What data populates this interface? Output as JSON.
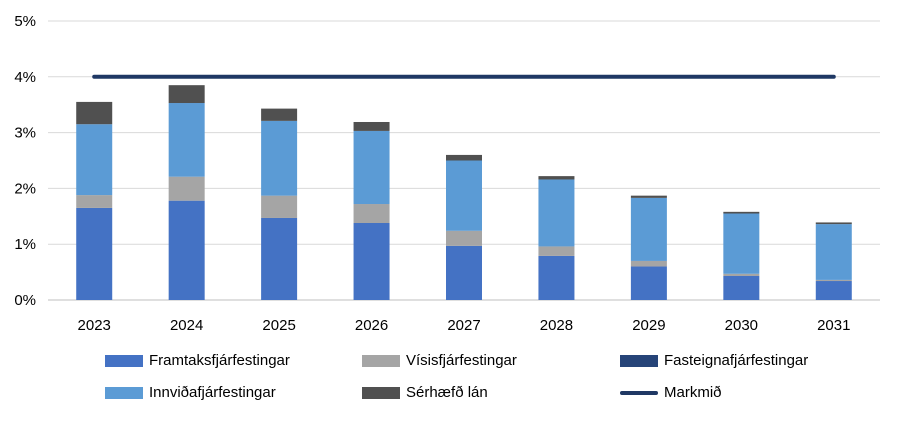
{
  "chart_data": {
    "type": "bar",
    "stacked": true,
    "categories": [
      "2023",
      "2024",
      "2025",
      "2026",
      "2027",
      "2028",
      "2029",
      "2030",
      "2031"
    ],
    "yticks": [
      "0%",
      "1%",
      "2%",
      "3%",
      "4%",
      "5%"
    ],
    "ylim": [
      0,
      5
    ],
    "grid": true,
    "legend_position": "bottom",
    "series": [
      {
        "name": "Framtaksfjárfestingar",
        "color": "#4472C4",
        "values": [
          1.65,
          1.78,
          1.47,
          1.38,
          0.97,
          0.79,
          0.6,
          0.43,
          0.34
        ]
      },
      {
        "name": "Vísisfjárfestingar",
        "color": "#A5A5A5",
        "values": [
          0.23,
          0.43,
          0.4,
          0.34,
          0.27,
          0.17,
          0.1,
          0.04,
          0.02
        ]
      },
      {
        "name": "Fasteignafjárfestingar",
        "color": "#264478",
        "values": [
          0,
          0,
          0,
          0,
          0,
          0,
          0,
          0,
          0
        ]
      },
      {
        "name": "Innviðafjárfestingar",
        "color": "#5B9BD5",
        "values": [
          1.27,
          1.32,
          1.34,
          1.31,
          1.26,
          1.2,
          1.13,
          1.08,
          1.0
        ]
      },
      {
        "name": "Sérhæfð lán",
        "color": "#505050",
        "values": [
          0.4,
          0.32,
          0.22,
          0.16,
          0.1,
          0.06,
          0.04,
          0.03,
          0.03
        ]
      }
    ],
    "target_line": {
      "name": "Markmið",
      "color": "#1F3864",
      "value": 4.0
    }
  }
}
